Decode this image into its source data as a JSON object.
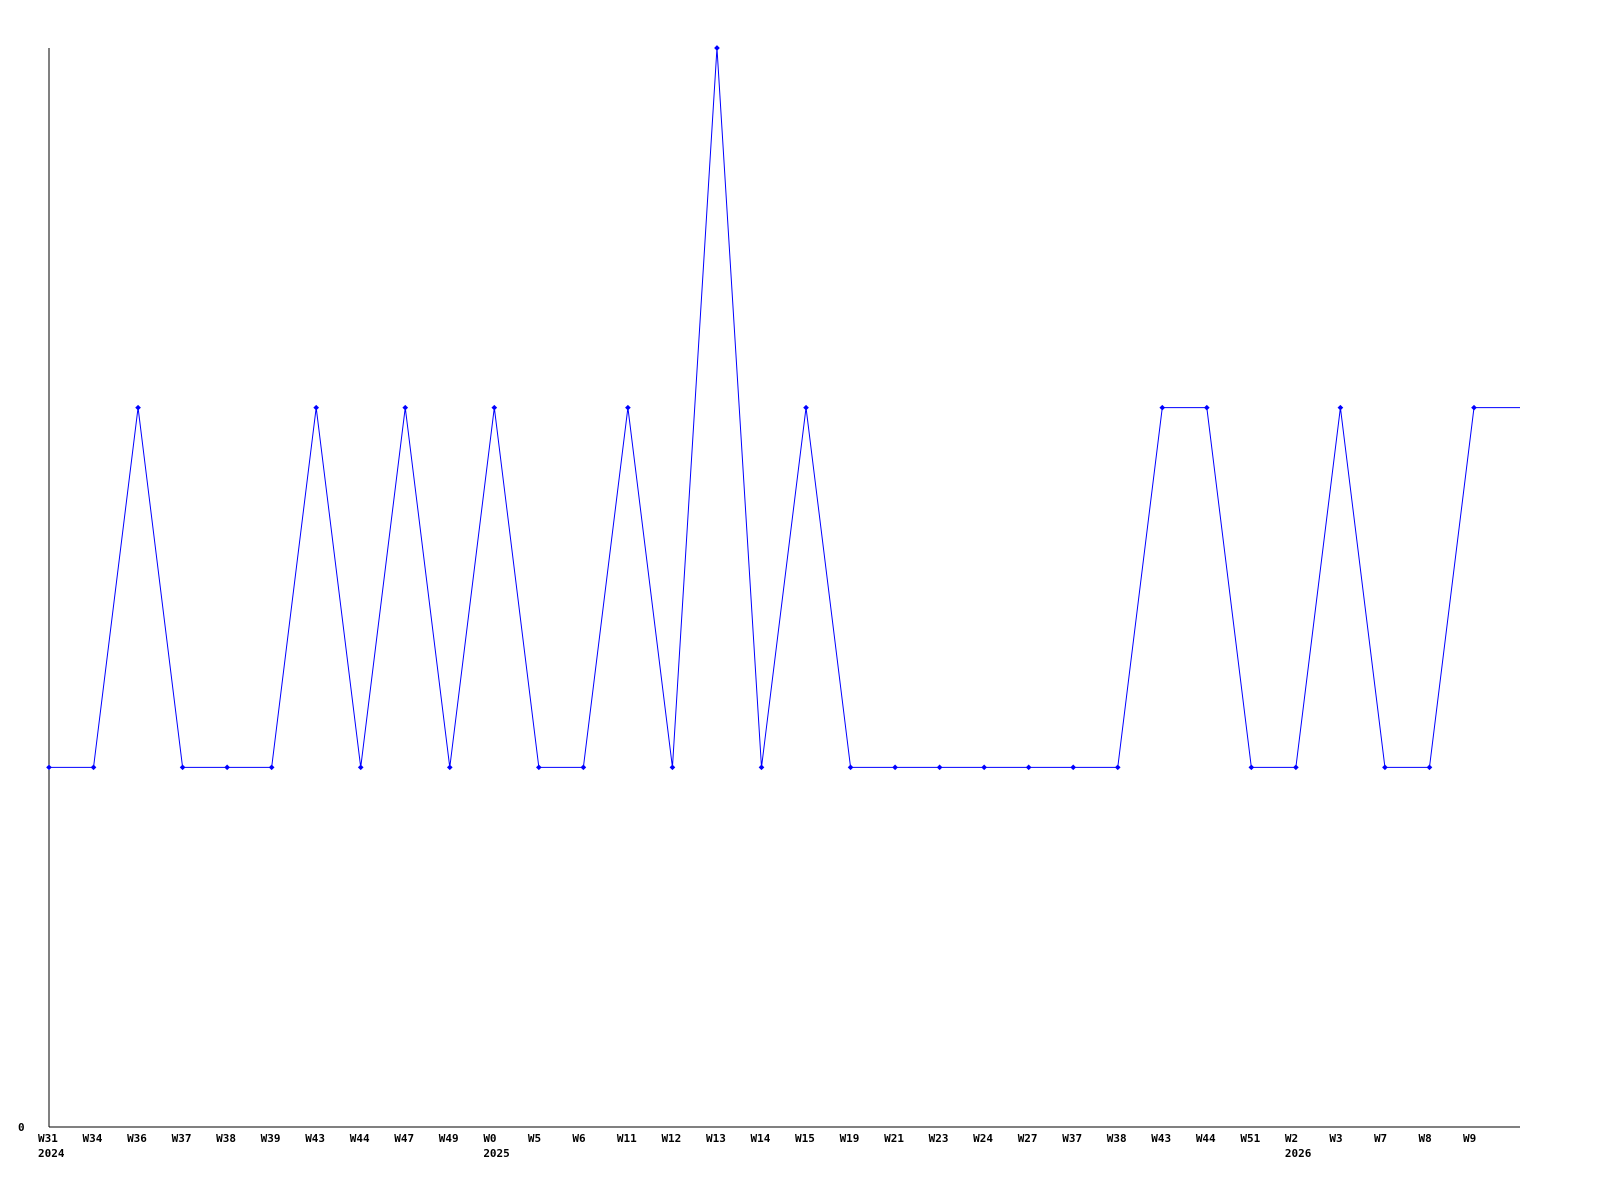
{
  "chart_data": {
    "type": "line",
    "title": "",
    "xlabel": "",
    "ylabel": "",
    "ylim": [
      0,
      3
    ],
    "y_ticks": [
      "0"
    ],
    "grid": false,
    "line_color": "#0000ff",
    "categories": [
      "W31",
      "W34",
      "W36",
      "W37",
      "W38",
      "W39",
      "W43",
      "W44",
      "W47",
      "W49",
      "W0",
      "W5",
      "W6",
      "W11",
      "W12",
      "W13",
      "W14",
      "W15",
      "W19",
      "W21",
      "W23",
      "W24",
      "W27",
      "W37",
      "W38",
      "W43",
      "W44",
      "W51",
      "W2",
      "W3",
      "W7",
      "W8",
      "W9"
    ],
    "year_labels": [
      {
        "index": 0,
        "label": "2024"
      },
      {
        "index": 10,
        "label": "2025"
      },
      {
        "index": 28,
        "label": "2026"
      }
    ],
    "series": [
      {
        "values": [
          1,
          1,
          2,
          1,
          1,
          1,
          2,
          1,
          2,
          1,
          2,
          1,
          1,
          2,
          1,
          3,
          1,
          2,
          1,
          1,
          1,
          1,
          1,
          1,
          1,
          2,
          2,
          1,
          1,
          2,
          1,
          1,
          2
        ]
      }
    ]
  }
}
